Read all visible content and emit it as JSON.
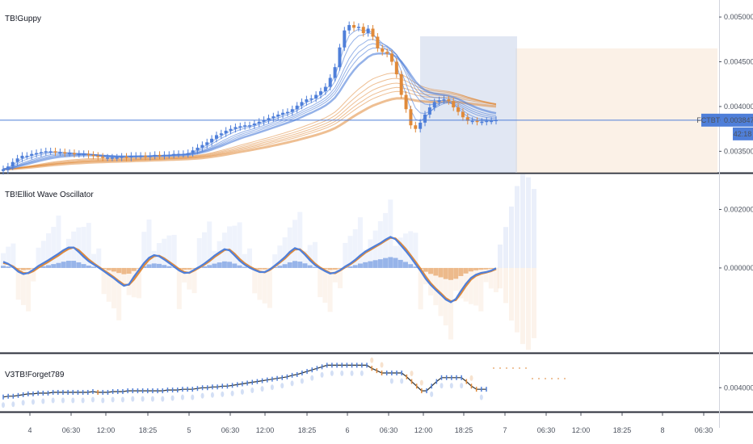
{
  "chart_data": {
    "type": "candlestick-with-indicators",
    "time_axis": {
      "ticks": [
        "4",
        "06:30",
        "12:00",
        "18:25",
        "5",
        "06:30",
        "12:00",
        "18:25",
        "6",
        "06:30",
        "12:00",
        "18:25",
        "7",
        "06:30",
        "12:00",
        "18:25",
        "8",
        "06:30"
      ]
    },
    "panes": [
      {
        "title": "TB!Guppy",
        "price_ticks": [
          "0.00500000",
          "0.00450000",
          "0.00400000",
          "0.00350000"
        ],
        "ylim": [
          0.00326,
          0.00519
        ],
        "symbol_label": "FCTBTC",
        "last_price_label": "0.00384774",
        "countdown_label": "42:18",
        "last_price": 0.00384774,
        "x_count": 105,
        "candles_count": 105,
        "candle_colors": {
          "up": "#4f7fd9",
          "down": "#e08a3a"
        },
        "candles": {
          "close": [
            0.0033,
            0.00333,
            0.00338,
            0.00342,
            0.00345,
            0.00345,
            0.00347,
            0.00348,
            0.00349,
            0.0035,
            0.0035,
            0.00349,
            0.00349,
            0.00348,
            0.00348,
            0.00347,
            0.00347,
            0.00347,
            0.00346,
            0.00345,
            0.00344,
            0.00343,
            0.00343,
            0.00343,
            0.00343,
            0.00344,
            0.00343,
            0.00345,
            0.00345,
            0.00345,
            0.00344,
            0.00345,
            0.00346,
            0.00345,
            0.00346,
            0.00346,
            0.00347,
            0.00347,
            0.00347,
            0.00348,
            0.00351,
            0.00354,
            0.00357,
            0.0036,
            0.00364,
            0.00368,
            0.0037,
            0.00373,
            0.00375,
            0.00377,
            0.00378,
            0.00379,
            0.00379,
            0.00381,
            0.00383,
            0.00385,
            0.00387,
            0.00389,
            0.00391,
            0.00393,
            0.00394,
            0.00397,
            0.00401,
            0.00405,
            0.00408,
            0.00409,
            0.00413,
            0.00417,
            0.00422,
            0.00432,
            0.00444,
            0.00466,
            0.00485,
            0.00491,
            0.00488,
            0.00489,
            0.00482,
            0.00487,
            0.00478,
            0.00465,
            0.00461,
            0.00459,
            0.0045,
            0.00436,
            0.00413,
            0.00397,
            0.00379,
            0.00375,
            0.00382,
            0.00391,
            0.00399,
            0.00405,
            0.00407,
            0.00408,
            0.00406,
            0.00399,
            0.00394,
            0.00388,
            0.00384,
            0.00384,
            0.00383,
            0.00383,
            0.00384,
            0.00384,
            0.00385
          ],
          "open": [
            0.00328,
            0.00329,
            0.00333,
            0.00338,
            0.00342,
            0.00345,
            0.00345,
            0.00347,
            0.00348,
            0.00349,
            0.0035,
            0.0035,
            0.00349,
            0.00349,
            0.00348,
            0.00348,
            0.00347,
            0.00347,
            0.00347,
            0.00346,
            0.00345,
            0.00344,
            0.00343,
            0.00343,
            0.00343,
            0.00343,
            0.00344,
            0.00343,
            0.00345,
            0.00345,
            0.00345,
            0.00344,
            0.00345,
            0.00346,
            0.00345,
            0.00346,
            0.00346,
            0.00347,
            0.00347,
            0.00347,
            0.00348,
            0.00351,
            0.00354,
            0.00357,
            0.0036,
            0.00364,
            0.00368,
            0.0037,
            0.00373,
            0.00375,
            0.00377,
            0.00378,
            0.00379,
            0.00379,
            0.00381,
            0.00383,
            0.00385,
            0.00387,
            0.00389,
            0.00391,
            0.00393,
            0.00394,
            0.00397,
            0.00401,
            0.00405,
            0.00408,
            0.00409,
            0.00413,
            0.00417,
            0.00422,
            0.00432,
            0.00444,
            0.00466,
            0.00485,
            0.00491,
            0.00488,
            0.00489,
            0.00482,
            0.00487,
            0.00478,
            0.00465,
            0.00461,
            0.00459,
            0.0045,
            0.00436,
            0.00413,
            0.00397,
            0.00379,
            0.00375,
            0.00382,
            0.00391,
            0.00399,
            0.00405,
            0.00407,
            0.00408,
            0.00406,
            0.00399,
            0.00394,
            0.00388,
            0.00384,
            0.00384,
            0.00383,
            0.00383,
            0.00384,
            0.00384
          ]
        },
        "ema_fast": {
          "spans": [
            3,
            5,
            8,
            10,
            12,
            15
          ],
          "color": "#4f7fd9"
        },
        "ema_slow": {
          "spans": [
            30,
            35,
            40,
            45,
            50,
            60
          ],
          "color": "#e08a3a"
        }
      },
      {
        "title": "TB!Elliot Wave Oscillator",
        "price_ticks": [
          "0.00200000",
          "0.00000000"
        ],
        "ylim": [
          -0.0029,
          0.0032
        ],
        "histogram_colors": {
          "positive": "#4f7fd9",
          "negative": "#e08a3a"
        },
        "oscillator": [
          0.00021,
          0.00014,
          2e-05,
          -0.00013,
          -0.00021,
          -0.00017,
          -6e-05,
          7e-05,
          0.00017,
          0.00027,
          0.00038,
          0.00049,
          0.00061,
          0.0007,
          0.0007,
          0.00055,
          0.00038,
          0.00023,
          0.00012,
          1e-05,
          -0.00011,
          -0.00023,
          -0.00035,
          -0.00049,
          -0.00061,
          -0.00056,
          -0.0003,
          -6e-05,
          0.00017,
          0.00035,
          0.00044,
          0.0004,
          0.00029,
          0.00017,
          4e-05,
          -9e-05,
          -0.00017,
          -0.00016,
          -6e-05,
          4e-05,
          0.00015,
          0.00028,
          0.00042,
          0.00054,
          0.00064,
          0.0006,
          0.00043,
          0.00025,
          0.00011,
          1e-05,
          -7e-05,
          -0.00014,
          -0.00014,
          -5e-05,
          8e-05,
          0.00022,
          0.00037,
          0.00055,
          0.00068,
          0.00062,
          0.00045,
          0.00026,
          0.0001,
          -1e-05,
          -0.00011,
          -0.00019,
          -0.00016,
          -7e-05,
          5e-05,
          0.00015,
          0.00028,
          0.00043,
          0.00056,
          0.00066,
          0.00076,
          0.00085,
          0.00097,
          0.00106,
          0.00098,
          0.00079,
          0.00059,
          0.00037,
          0.00013,
          -0.0001,
          -0.00037,
          -0.00058,
          -0.00075,
          -0.00091,
          -0.00108,
          -0.00117,
          -0.00106,
          -0.00079,
          -0.00054,
          -0.00034,
          -0.00023,
          -0.00017,
          -0.00014,
          -9e-05,
          -1e-05
        ],
        "signal": [
          0.00017,
          0.00013,
          5e-05,
          -8e-05,
          -0.00017,
          -0.00018,
          -0.00011,
          1e-05,
          0.00011,
          0.00021,
          0.00032,
          0.00043,
          0.00055,
          0.00065,
          0.0007,
          0.00061,
          0.00045,
          0.00029,
          0.00016,
          4e-05,
          -8e-05,
          -0.00019,
          -0.00031,
          -0.00045,
          -0.00057,
          -0.00058,
          -0.0004,
          -0.00016,
          8e-05,
          0.00028,
          0.0004,
          0.00042,
          0.00033,
          0.00021,
          9e-05,
          -4e-05,
          -0.00014,
          -0.00017,
          -9e-05,
          1e-05,
          0.00011,
          0.00023,
          0.00037,
          0.00049,
          0.00061,
          0.00063,
          0.00049,
          0.00031,
          0.00016,
          5e-05,
          -4e-05,
          -0.00012,
          -0.00015,
          -7e-05,
          5e-05,
          0.00018,
          0.00032,
          0.00049,
          0.00063,
          0.00064,
          0.0005,
          0.00032,
          0.00015,
          2e-05,
          -8e-05,
          -0.00017,
          -0.00018,
          -9e-05,
          2e-05,
          0.00012,
          0.00024,
          0.00038,
          0.00052,
          0.00062,
          0.00072,
          0.00082,
          0.00093,
          0.00103,
          0.00101,
          0.00085,
          0.00066,
          0.00044,
          0.00021,
          -3e-05,
          -0.00029,
          -0.00052,
          -0.0007,
          -0.00086,
          -0.00103,
          -0.00114,
          -0.0011,
          -0.00088,
          -0.00062,
          -0.0004,
          -0.00027,
          -0.0002,
          -0.00016,
          -0.00011,
          -4e-05
        ],
        "histogram_levels": [
          0.0008,
          0.0012,
          0.0015,
          0.0018,
          0.002,
          0.0024
        ]
      },
      {
        "title": "V3TB!Forget789",
        "price_ticks": [
          "0.00400000"
        ],
        "ylim": [
          0.00369,
          0.00443
        ],
        "line_color": "#2f3437",
        "values": [
          0.00388,
          0.00389,
          0.00389,
          0.0039,
          0.00391,
          0.00392,
          0.00392,
          0.00393,
          0.00393,
          0.00393,
          0.00394,
          0.00394,
          0.00394,
          0.00394,
          0.00394,
          0.00394,
          0.00394,
          0.00394,
          0.00395,
          0.00394,
          0.00394,
          0.00394,
          0.00395,
          0.00395,
          0.00395,
          0.00396,
          0.00396,
          0.00396,
          0.00396,
          0.00396,
          0.00396,
          0.00396,
          0.00396,
          0.00397,
          0.00397,
          0.00397,
          0.00398,
          0.00398,
          0.00398,
          0.00399,
          0.004,
          0.004,
          0.00401,
          0.00401,
          0.00402,
          0.00402,
          0.00403,
          0.00404,
          0.00405,
          0.00406,
          0.00407,
          0.00408,
          0.00409,
          0.0041,
          0.00411,
          0.00412,
          0.00413,
          0.00414,
          0.00416,
          0.00417,
          0.00419,
          0.00421,
          0.00423,
          0.00425,
          0.00427,
          0.00429,
          0.00429,
          0.00429,
          0.00429,
          0.00429,
          0.00429,
          0.00429,
          0.00429,
          0.00429,
          0.00425,
          0.00422,
          0.00419,
          0.00419,
          0.00419,
          0.00419,
          0.00419,
          0.00414,
          0.00408,
          0.00402,
          0.00396,
          0.00396,
          0.00402,
          0.00408,
          0.00413,
          0.00413,
          0.00413,
          0.00413,
          0.00413,
          0.00408,
          0.00402,
          0.00398,
          0.00398,
          0.00398
        ]
      }
    ]
  }
}
